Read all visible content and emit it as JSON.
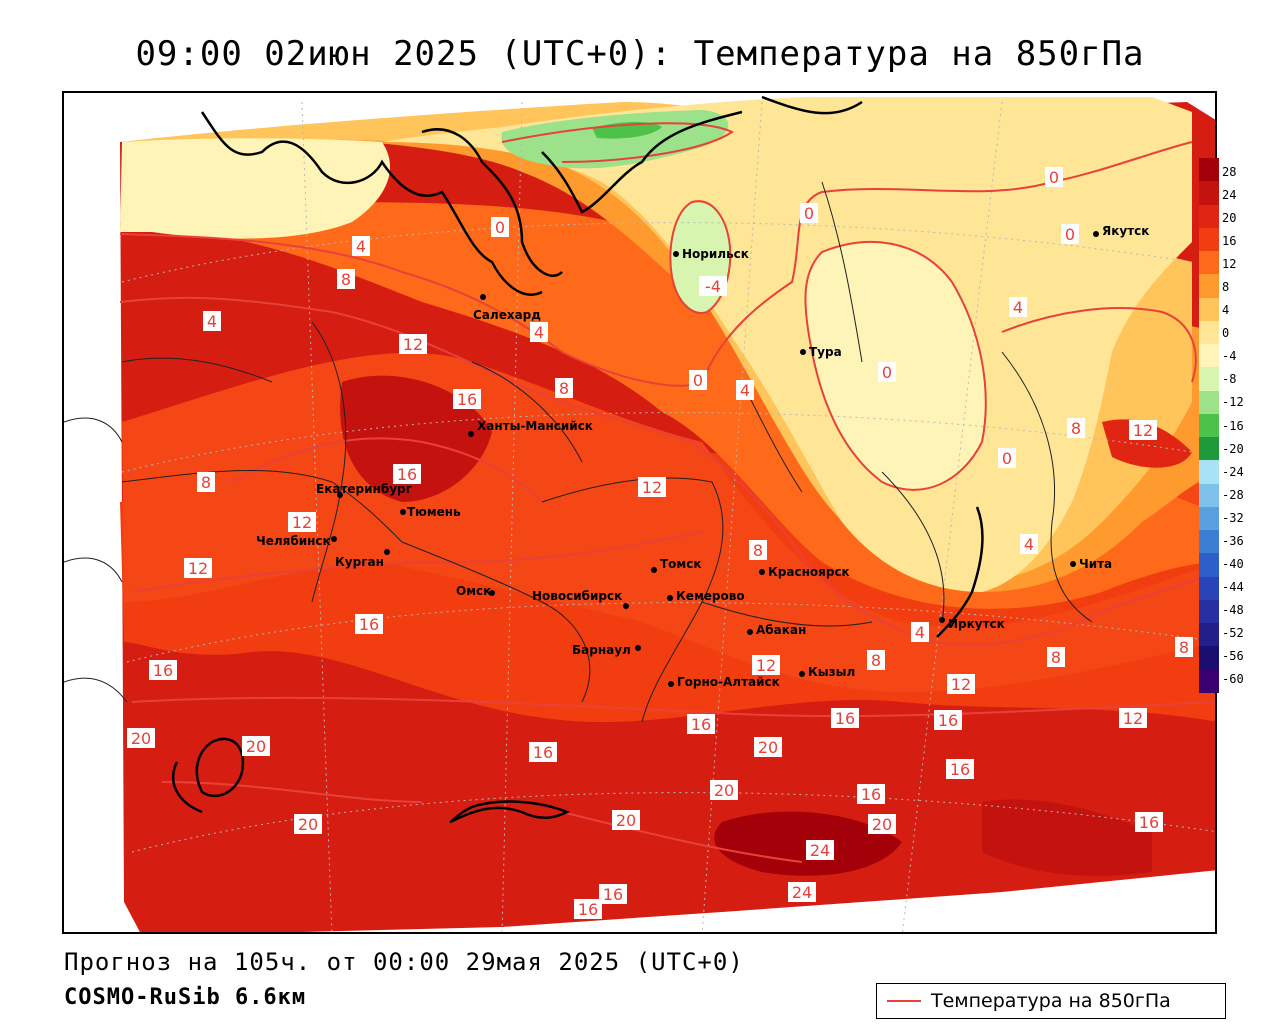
{
  "title": "09:00 02июн 2025 (UTC+0): Температура на 850гПа",
  "footer": {
    "forecast": "Прогноз на 105ч. от 00:00 29мая 2025 (UTC+0)",
    "model": "COSMO-RuSib 6.6км"
  },
  "legend": {
    "label": "Температура на 850гПа",
    "line_color": "#e8413a"
  },
  "colorbar": {
    "labels": [
      "28",
      "24",
      "20",
      "16",
      "12",
      "8",
      "4",
      "0",
      "-4",
      "-8",
      "-12",
      "-16",
      "-20",
      "-24",
      "-28",
      "-32",
      "-36",
      "-40",
      "-44",
      "-48",
      "-52",
      "-56",
      "-60"
    ],
    "colors": [
      "#a3000a",
      "#c4130f",
      "#e02513",
      "#f23d10",
      "#ff6a1a",
      "#ff9a2e",
      "#ffc45a",
      "#ffe596",
      "#fff4b8",
      "#d8f5b0",
      "#9be28a",
      "#4cc24a",
      "#1e9a3a",
      "#a8e2f5",
      "#7ec2ec",
      "#5a9fe0",
      "#3c7ed4",
      "#2e5ec8",
      "#2a43b8",
      "#2630a0",
      "#221f8a",
      "#1a0f70",
      "#3a0070"
    ]
  },
  "cities": [
    {
      "name": "Норильск",
      "icon": "city-dot-icon"
    },
    {
      "name": "Якутск",
      "icon": "city-dot-icon"
    },
    {
      "name": "Салехард",
      "icon": "city-dot-icon"
    },
    {
      "name": "Тура",
      "icon": "city-dot-icon"
    },
    {
      "name": "Ханты-Мансийск",
      "icon": "city-dot-icon"
    },
    {
      "name": "Екатеринбург",
      "icon": "city-dot-icon"
    },
    {
      "name": "Тюмень",
      "icon": "city-dot-icon"
    },
    {
      "name": "Челябинск",
      "icon": "city-dot-icon"
    },
    {
      "name": "Курган",
      "icon": "city-dot-icon"
    },
    {
      "name": "Омск",
      "icon": "city-dot-icon"
    },
    {
      "name": "Новосибирск",
      "icon": "city-dot-icon"
    },
    {
      "name": "Томск",
      "icon": "city-dot-icon"
    },
    {
      "name": "Кемерово",
      "icon": "city-dot-icon"
    },
    {
      "name": "Барнаул",
      "icon": "city-dot-icon"
    },
    {
      "name": "Горно-Алтайск",
      "icon": "city-dot-icon"
    },
    {
      "name": "Красноярск",
      "icon": "city-dot-icon"
    },
    {
      "name": "Абакан",
      "icon": "city-dot-icon"
    },
    {
      "name": "Кызыл",
      "icon": "city-dot-icon"
    },
    {
      "name": "Иркутск",
      "icon": "city-dot-icon"
    },
    {
      "name": "Чита",
      "icon": "city-dot-icon"
    }
  ],
  "isotherm_labels": [
    "0",
    "0",
    "0",
    "0",
    "0",
    "0",
    "0",
    "-4",
    "4",
    "4",
    "4",
    "4",
    "4",
    "4",
    "4",
    "8",
    "8",
    "8",
    "8",
    "8",
    "8",
    "8",
    "8",
    "12",
    "12",
    "12",
    "12",
    "12",
    "12",
    "12",
    "12",
    "16",
    "16",
    "16",
    "16",
    "16",
    "16",
    "16",
    "16",
    "16",
    "16",
    "16",
    "16",
    "16",
    "20",
    "20",
    "20",
    "20",
    "20",
    "20",
    "20",
    "24",
    "24"
  ]
}
